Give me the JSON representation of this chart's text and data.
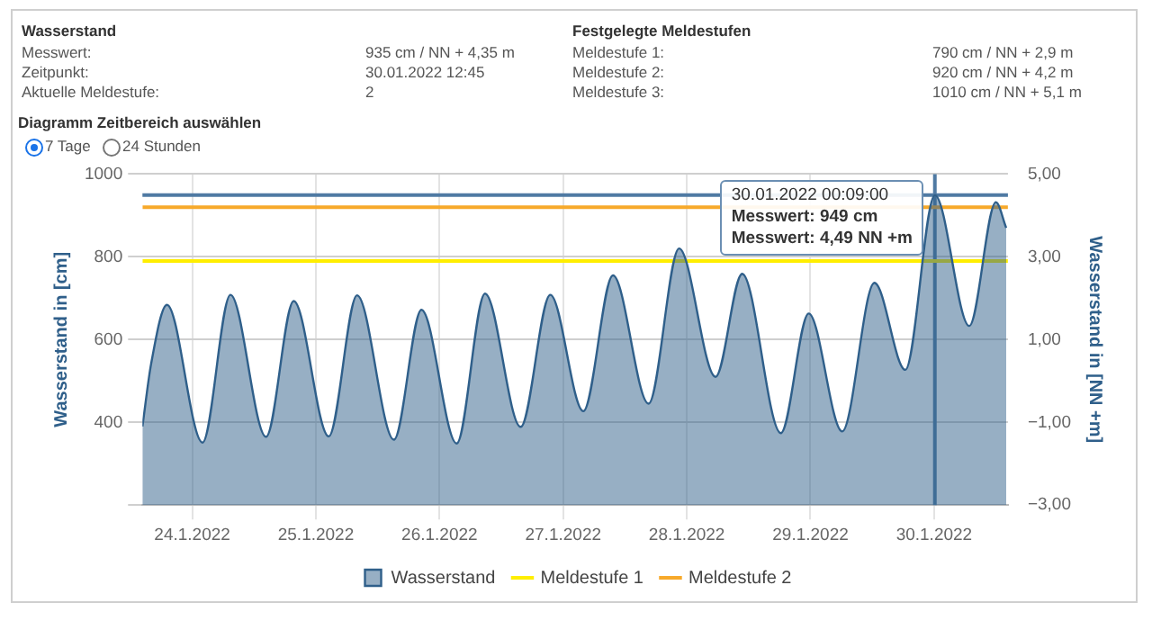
{
  "chart_data": {
    "type": "area",
    "xlabel": null,
    "ylabel": "Wasserstand in [cm]",
    "y2label": "Wasserstand in [NN +m]",
    "series": [
      {
        "name": "Wasserstand",
        "type": "area",
        "color": "#2f5f8a",
        "x": [
          "2022-01-23T14:20",
          "2022-01-23T16:00",
          "2022-01-23T19:06",
          "2022-01-24T02:00",
          "2022-01-24T07:25",
          "2022-01-24T14:20",
          "2022-01-24T19:42",
          "2022-01-25T02:30",
          "2022-01-25T08:00",
          "2022-01-25T15:09",
          "2022-01-25T20:30",
          "2022-01-26T03:20",
          "2022-01-26T08:50",
          "2022-01-26T15:45",
          "2022-01-26T21:30",
          "2022-01-27T03:55",
          "2022-01-27T09:40",
          "2022-01-27T16:35",
          "2022-01-27T22:30",
          "2022-01-28T05:35",
          "2022-01-28T10:45",
          "2022-01-28T18:15",
          "2022-01-28T23:40",
          "2022-01-29T06:10",
          "2022-01-29T12:25",
          "2022-01-29T18:25",
          "2022-01-30T00:09",
          "2022-01-30T06:50",
          "2022-01-30T12:00",
          "2022-01-30T14:00"
        ],
        "values": [
          390,
          540,
          684,
          351,
          708,
          365,
          693,
          366,
          707,
          358,
          672,
          349,
          711,
          389,
          708,
          427,
          755,
          445,
          820,
          510,
          759,
          374,
          663,
          378,
          737,
          527,
          949,
          633,
          932,
          870
        ]
      },
      {
        "name": "Meldestufe 1",
        "type": "line",
        "color": "#ffee00",
        "x": [
          "2022-01-23T14:20",
          "2022-01-30T14:20"
        ],
        "values": [
          790,
          790
        ]
      },
      {
        "name": "Meldestufe 2",
        "type": "line",
        "color": "#f7a92a",
        "x": [
          "2022-01-23T14:20",
          "2022-01-30T14:20"
        ],
        "values": [
          920,
          920
        ]
      }
    ],
    "xlim": [
      "2022-01-23T14:20",
      "2022-01-30T14:20"
    ],
    "xticks": [
      {
        "value": "2022-01-24",
        "label": "24.1.2022"
      },
      {
        "value": "2022-01-25",
        "label": "25.1.2022"
      },
      {
        "value": "2022-01-26",
        "label": "26.1.2022"
      },
      {
        "value": "2022-01-27",
        "label": "27.1.2022"
      },
      {
        "value": "2022-01-28",
        "label": "28.1.2022"
      },
      {
        "value": "2022-01-29",
        "label": "29.1.2022"
      },
      {
        "value": "2022-01-30",
        "label": "30.1.2022"
      }
    ],
    "ylim": [
      200,
      1000
    ],
    "yticks": [
      {
        "value": 200,
        "label": null
      },
      400,
      600,
      800,
      1000
    ],
    "y2lim": [
      -3,
      5
    ],
    "y2ticks": [
      {
        "value": -3,
        "label": "−3,00"
      },
      {
        "value": -1,
        "label": "−1,00"
      },
      {
        "value": 1,
        "label": "1,00"
      },
      {
        "value": 3,
        "label": "3,00"
      },
      {
        "value": 5,
        "label": "5,00"
      }
    ],
    "ref_lines": [
      {
        "axis": "x",
        "value": "2022-01-30T00:09",
        "color": "#4f7aa3"
      },
      {
        "axis": "y",
        "value": 949,
        "color": "#4f7aa3"
      }
    ],
    "grid": true,
    "legend": "bottom",
    "marker": "none",
    "annotations": [
      "Wasserstand",
      "Messwert:",
      "935 cm / NN + 4,35 m",
      "Zeitpunkt:",
      "30.01.2022 12:45",
      "Aktuelle Meldestufe:",
      "2",
      "Festgelegte Meldestufen",
      "Meldestufe 1:",
      "790 cm / NN + 2,9 m",
      "Meldestufe 2:",
      "920 cm / NN + 4,2 m",
      "Meldestufe 3:",
      "1010 cm / NN + 5,1 m",
      "Diagramm Zeitbereich auswählen",
      "7 Tage",
      "24 Stunden",
      {
        "text": "30.01.2022 00:09:00\nMesswert: 949 cm\nMesswert: 4,49 NN +m",
        "x": "2022-01-30T00:09",
        "y": 949
      }
    ]
  }
}
